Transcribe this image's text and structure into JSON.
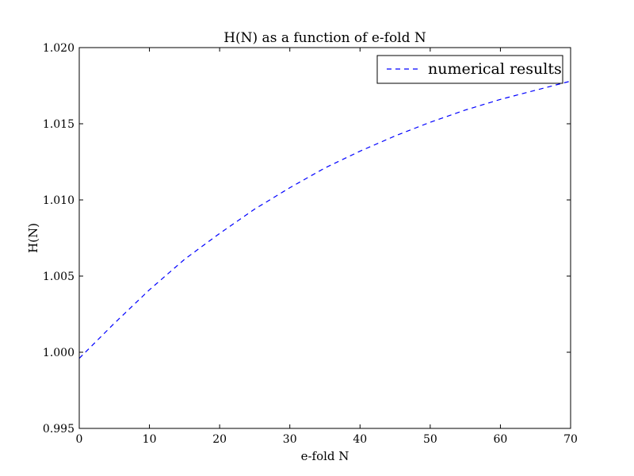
{
  "chart_data": {
    "type": "line",
    "title": "H(N) as a function of e-fold N",
    "xlabel": "e-fold N",
    "ylabel": "H(N)",
    "xlim": [
      0,
      70
    ],
    "ylim": [
      0.995,
      1.02
    ],
    "xticks": [
      0,
      10,
      20,
      30,
      40,
      50,
      60,
      70
    ],
    "yticks": [
      0.995,
      1.0,
      1.005,
      1.01,
      1.015,
      1.02
    ],
    "ytick_labels": [
      "0.995",
      "1.000",
      "1.005",
      "1.010",
      "1.015",
      "1.020"
    ],
    "grid": false,
    "legend_position": "top-right",
    "series": [
      {
        "name": "numerical results",
        "style": "dashed",
        "color": "#0000ff",
        "x": [
          0,
          5,
          10,
          15,
          20,
          25,
          30,
          35,
          40,
          45,
          50,
          55,
          60,
          65,
          70
        ],
        "y": [
          0.9996,
          1.0019,
          1.0041,
          1.0061,
          1.0078,
          1.0094,
          1.0108,
          1.0121,
          1.0132,
          1.0142,
          1.0151,
          1.0159,
          1.0166,
          1.0172,
          1.0178
        ]
      }
    ]
  }
}
